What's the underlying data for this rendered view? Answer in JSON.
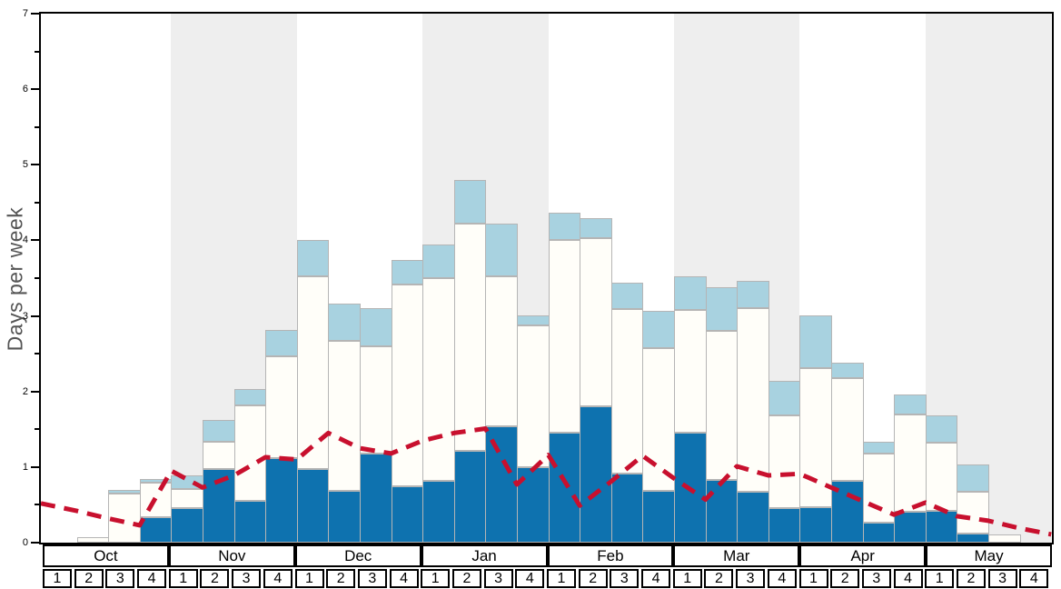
{
  "chart_data": {
    "type": "bar",
    "title": "",
    "ylabel": "Days per week",
    "ylim": [
      0,
      7
    ],
    "y_major_ticks": [
      0,
      1,
      2,
      3,
      4,
      5,
      6,
      7
    ],
    "y_minor_tick_step": 0.5,
    "grid": "off",
    "legend": "none",
    "months": [
      {
        "label": "Oct",
        "shaded": false
      },
      {
        "label": "Nov",
        "shaded": true
      },
      {
        "label": "Dec",
        "shaded": false
      },
      {
        "label": "Jan",
        "shaded": true
      },
      {
        "label": "Feb",
        "shaded": false
      },
      {
        "label": "Mar",
        "shaded": true
      },
      {
        "label": "Apr",
        "shaded": false
      },
      {
        "label": "May",
        "shaded": true
      }
    ],
    "week_labels": [
      "1",
      "2",
      "3",
      "4"
    ],
    "weeks_per_month": 4,
    "stacked_series": [
      {
        "name": "dark-blue-days",
        "color": "#0e72af",
        "values": [
          0,
          0,
          0,
          0.34,
          0.46,
          0.97,
          0.55,
          1.12,
          0.97,
          0.68,
          1.18,
          0.75,
          0.82,
          1.22,
          1.54,
          1.0,
          1.46,
          1.81,
          0.91,
          0.69,
          1.46,
          0.83,
          0.67,
          0.46,
          0.47,
          0.82,
          0.26,
          0.41,
          0.42,
          0.12,
          0,
          0
        ]
      },
      {
        "name": "white-days",
        "color": "#fffef9",
        "values": [
          0,
          0.07,
          0.65,
          0.45,
          0.25,
          0.36,
          1.27,
          1.35,
          2.55,
          1.99,
          1.42,
          2.67,
          2.68,
          3.0,
          1.98,
          1.88,
          2.55,
          2.22,
          2.18,
          1.89,
          1.62,
          1.97,
          2.43,
          1.23,
          1.84,
          1.36,
          0.92,
          1.29,
          0.9,
          0.55,
          0.11,
          0
        ]
      },
      {
        "name": "light-blue-days",
        "color": "#a8d2e0",
        "values": [
          0,
          0,
          0.05,
          0.05,
          0.18,
          0.29,
          0.21,
          0.34,
          0.48,
          0.49,
          0.5,
          0.32,
          0.45,
          0.58,
          0.7,
          0.13,
          0.36,
          0.27,
          0.35,
          0.49,
          0.44,
          0.58,
          0.37,
          0.45,
          0.7,
          0.2,
          0.15,
          0.26,
          0.36,
          0.37,
          0,
          0
        ]
      }
    ],
    "line_series": {
      "name": "red-dashed-trend",
      "color": "#c8102e",
      "style": "dashed",
      "x_positions": "week-boundaries",
      "values": [
        0.52,
        0.42,
        0.32,
        0.23,
        0.95,
        0.73,
        0.89,
        1.13,
        1.1,
        1.45,
        1.25,
        1.18,
        1.35,
        1.45,
        1.51,
        0.77,
        1.16,
        0.49,
        0.81,
        1.15,
        0.85,
        0.57,
        1.01,
        0.89,
        0.91,
        0.73,
        0.55,
        0.37,
        0.53,
        0.35,
        0.29,
        0.19,
        0.11
      ]
    }
  },
  "colors": {
    "bar_border": "#b5b5b5",
    "band_shaded": "#eeeeee",
    "band_plain": "#ffffff",
    "axis": "#000000",
    "ylabel_text": "#555555",
    "page_bg": "#ffffff"
  }
}
